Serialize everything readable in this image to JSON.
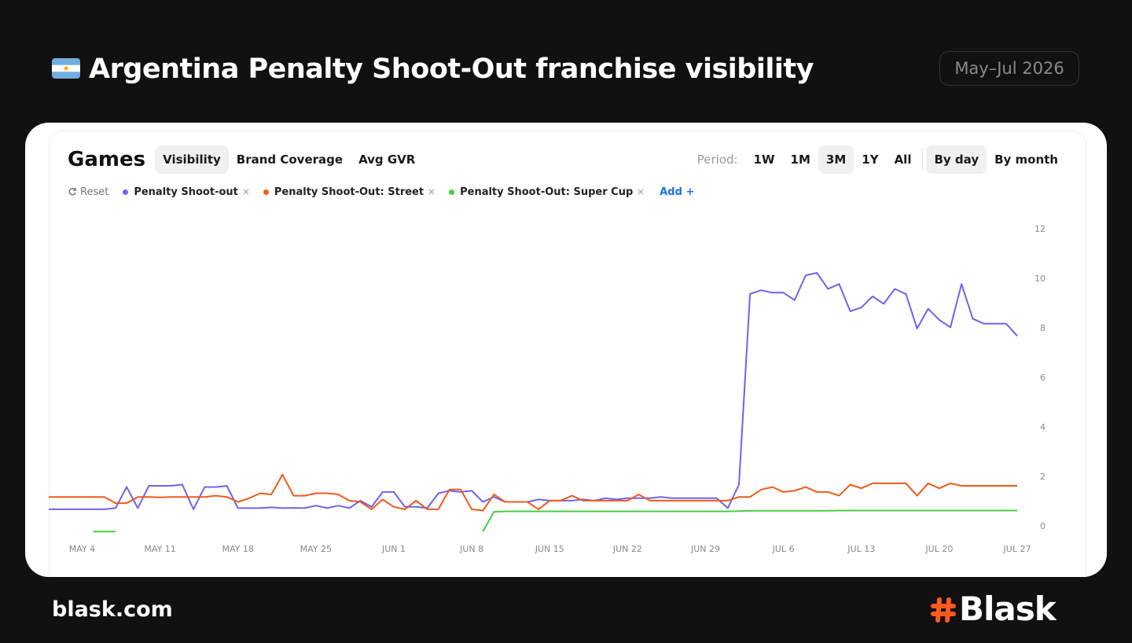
{
  "header": {
    "title": "Argentina Penalty Shoot-Out franchise visibility",
    "period": "May–Jul 2026"
  },
  "panel": {
    "heading": "Games",
    "tabs": [
      "Visibility",
      "Brand Coverage",
      "Avg GVR"
    ],
    "period_label": "Period:",
    "periods": [
      "1W",
      "1M",
      "3M",
      "1Y",
      "All"
    ],
    "granularity": [
      "By day",
      "By month"
    ],
    "reset": "Reset",
    "add": "Add +"
  },
  "chart_data": {
    "type": "line",
    "x": [
      null,
      null,
      null,
      "MAY 4",
      null,
      null,
      null,
      null,
      null,
      null,
      "MAY 11",
      null,
      null,
      null,
      null,
      null,
      null,
      "MAY 18",
      null,
      null,
      null,
      null,
      null,
      null,
      "MAY 25",
      null,
      null,
      null,
      null,
      null,
      null,
      "JUN 1",
      null,
      null,
      null,
      null,
      null,
      null,
      "JUN 8",
      null,
      null,
      null,
      null,
      null,
      null,
      "JUN 15",
      null,
      null,
      null,
      null,
      null,
      null,
      "JUN 22",
      null,
      null,
      null,
      null,
      null,
      null,
      "JUN 29",
      null,
      null,
      null,
      null,
      null,
      null,
      "JUL 6",
      null,
      null,
      null,
      null,
      null,
      null,
      "JUL 13",
      null,
      null,
      null,
      null,
      null,
      null,
      "JUL 20",
      null,
      null,
      null,
      null,
      null,
      null,
      "JUL 27"
    ],
    "series": [
      {
        "name": "Penalty Shoot-out",
        "color": "#6e63ee",
        "values": [
          0.7,
          0.7,
          0.7,
          0.7,
          0.7,
          0.7,
          0.75,
          1.6,
          0.75,
          1.65,
          1.65,
          1.65,
          1.7,
          0.7,
          1.6,
          1.6,
          1.65,
          0.75,
          0.75,
          0.75,
          0.78,
          0.75,
          0.76,
          0.75,
          0.85,
          0.75,
          0.85,
          0.75,
          1.05,
          0.8,
          1.4,
          1.4,
          0.8,
          0.8,
          0.75,
          1.35,
          1.45,
          1.4,
          1.45,
          1.0,
          1.2,
          1.0,
          1.0,
          1.0,
          1.1,
          1.05,
          1.05,
          1.05,
          1.1,
          1.05,
          1.15,
          1.1,
          1.15,
          1.15,
          1.15,
          1.2,
          1.15,
          1.15,
          1.15,
          1.15,
          1.15,
          0.75,
          1.7,
          9.4,
          9.55,
          9.45,
          9.45,
          9.15,
          10.15,
          10.25,
          9.6,
          9.8,
          8.7,
          8.85,
          9.3,
          9.0,
          9.6,
          9.4,
          8.0,
          8.8,
          8.35,
          8.05,
          9.8,
          8.4,
          8.2,
          8.2,
          8.2,
          7.7
        ]
      },
      {
        "name": "Penalty Shoot-Out: Street",
        "color": "#f05a1a",
        "values": [
          1.2,
          1.2,
          1.2,
          1.2,
          1.2,
          1.2,
          0.95,
          0.95,
          1.2,
          1.2,
          1.18,
          1.2,
          1.2,
          1.2,
          1.2,
          1.25,
          1.2,
          1.0,
          1.15,
          1.35,
          1.3,
          2.1,
          1.25,
          1.25,
          1.35,
          1.35,
          1.3,
          1.05,
          1.0,
          0.7,
          1.1,
          0.8,
          0.7,
          1.05,
          0.7,
          0.7,
          1.5,
          1.5,
          0.7,
          0.65,
          1.3,
          1.0,
          1.0,
          1.0,
          0.7,
          1.05,
          1.05,
          1.25,
          1.05,
          1.05,
          1.05,
          1.05,
          1.05,
          1.3,
          1.05,
          1.05,
          1.05,
          1.05,
          1.05,
          1.05,
          1.05,
          1.05,
          1.2,
          1.2,
          1.5,
          1.6,
          1.4,
          1.45,
          1.6,
          1.4,
          1.4,
          1.25,
          1.7,
          1.55,
          1.75,
          1.75,
          1.75,
          1.75,
          1.25,
          1.75,
          1.55,
          1.75,
          1.65,
          1.65,
          1.65,
          1.65,
          1.65,
          1.65
        ]
      },
      {
        "name": "Penalty Shoot-Out: Super Cup",
        "color": "#4ccc44",
        "values": [
          null,
          null,
          null,
          null,
          -0.2,
          -0.2,
          -0.2,
          null,
          null,
          null,
          null,
          null,
          null,
          null,
          null,
          null,
          null,
          null,
          null,
          null,
          null,
          null,
          null,
          null,
          null,
          null,
          null,
          null,
          null,
          null,
          null,
          null,
          null,
          null,
          null,
          null,
          null,
          null,
          null,
          -0.2,
          0.6,
          0.62,
          0.62,
          0.62,
          0.62,
          0.62,
          0.62,
          0.62,
          0.62,
          0.62,
          0.62,
          0.62,
          0.62,
          0.62,
          0.62,
          0.62,
          0.62,
          0.62,
          0.62,
          0.62,
          0.62,
          0.62,
          0.63,
          0.64,
          0.64,
          0.64,
          0.64,
          0.64,
          0.64,
          0.64,
          0.64,
          0.65,
          0.65,
          0.65,
          0.65,
          0.65,
          0.65,
          0.65,
          0.65,
          0.65,
          0.65,
          0.65,
          0.65,
          0.65,
          0.65,
          0.65,
          0.65,
          0.65
        ]
      }
    ],
    "ylim": [
      -0.6,
      12.4
    ],
    "yticks": [
      0,
      2,
      4,
      6,
      8,
      10,
      12
    ],
    "grid": false
  },
  "footer": {
    "site": "blask.com",
    "brand": "Blask"
  }
}
